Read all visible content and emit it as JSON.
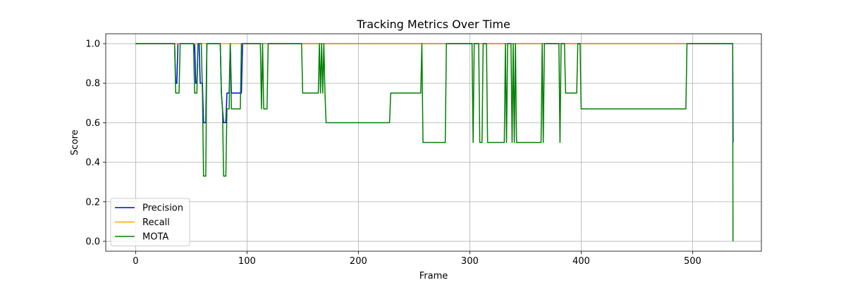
{
  "chart_data": {
    "type": "line",
    "title": "Tracking Metrics Over Time",
    "xlabel": "Frame",
    "ylabel": "Score",
    "xlim": [
      -26.8,
      561.8
    ],
    "ylim": [
      -0.05,
      1.05
    ],
    "xticks": [
      0,
      100,
      200,
      300,
      400,
      500
    ],
    "yticks": [
      0.0,
      0.2,
      0.4,
      0.6,
      0.8,
      1.0
    ],
    "grid": true,
    "legend_position": "lower-left",
    "series": [
      {
        "name": "Precision",
        "color": "#0000ff",
        "points": [
          [
            0,
            1.0
          ],
          [
            35,
            1.0
          ],
          [
            36,
            0.8
          ],
          [
            37,
            0.8
          ],
          [
            38,
            1.0
          ],
          [
            53,
            1.0
          ],
          [
            54,
            0.8
          ],
          [
            55,
            0.8
          ],
          [
            56,
            1.0
          ],
          [
            57,
            1.0
          ],
          [
            58,
            0.8
          ],
          [
            60,
            0.8
          ],
          [
            61,
            0.6
          ],
          [
            63,
            0.6
          ],
          [
            64,
            1.0
          ],
          [
            76,
            1.0
          ],
          [
            77,
            0.75
          ],
          [
            78,
            0.67
          ],
          [
            79,
            0.6
          ],
          [
            81,
            0.6
          ],
          [
            82,
            0.75
          ],
          [
            84,
            0.75
          ],
          [
            85,
            1.0
          ],
          [
            86,
            0.75
          ],
          [
            95,
            0.75
          ],
          [
            96,
            1.0
          ],
          [
            536,
            1.0
          ],
          [
            536.4,
            0.5
          ]
        ]
      },
      {
        "name": "Recall",
        "color": "#ffa500",
        "points": [
          [
            0,
            1.0
          ],
          [
            537,
            1.0
          ]
        ]
      },
      {
        "name": "MOTA",
        "color": "#008000",
        "points": [
          [
            0,
            1.0
          ],
          [
            35,
            1.0
          ],
          [
            36,
            0.75
          ],
          [
            37,
            0.75
          ],
          [
            39,
            0.75
          ],
          [
            40,
            1.0
          ],
          [
            52,
            1.0
          ],
          [
            53,
            0.75
          ],
          [
            55,
            0.75
          ],
          [
            56,
            1.0
          ],
          [
            59,
            1.0
          ],
          [
            60,
            0.75
          ],
          [
            61,
            0.33
          ],
          [
            63,
            0.33
          ],
          [
            64,
            1.0
          ],
          [
            76,
            1.0
          ],
          [
            77,
            0.75
          ],
          [
            78,
            0.67
          ],
          [
            79,
            0.33
          ],
          [
            81,
            0.33
          ],
          [
            82,
            0.67
          ],
          [
            84,
            0.67
          ],
          [
            85,
            1.0
          ],
          [
            86,
            0.67
          ],
          [
            94,
            0.67
          ],
          [
            95,
            1.0
          ],
          [
            112,
            1.0
          ],
          [
            113,
            0.67
          ],
          [
            114,
            1.0
          ],
          [
            115,
            0.67
          ],
          [
            118,
            0.67
          ],
          [
            119,
            1.0
          ],
          [
            149,
            1.0
          ],
          [
            150,
            0.75
          ],
          [
            164,
            0.75
          ],
          [
            165,
            1.0
          ],
          [
            166,
            0.75
          ],
          [
            167,
            1.0
          ],
          [
            168,
            0.75
          ],
          [
            169,
            1.0
          ],
          [
            170,
            0.75
          ],
          [
            171,
            0.6
          ],
          [
            228,
            0.6
          ],
          [
            229,
            0.75
          ],
          [
            256,
            0.75
          ],
          [
            257,
            1.0
          ],
          [
            258,
            0.5
          ],
          [
            278,
            0.5
          ],
          [
            279,
            1.0
          ],
          [
            302,
            1.0
          ],
          [
            303,
            0.5
          ],
          [
            304,
            1.0
          ],
          [
            308,
            1.0
          ],
          [
            309,
            0.5
          ],
          [
            311,
            0.5
          ],
          [
            312,
            1.0
          ],
          [
            315,
            1.0
          ],
          [
            316,
            0.5
          ],
          [
            331,
            0.5
          ],
          [
            332,
            1.0
          ],
          [
            333,
            0.5
          ],
          [
            334,
            1.0
          ],
          [
            337,
            1.0
          ],
          [
            338,
            0.5
          ],
          [
            339,
            1.0
          ],
          [
            340,
            0.5
          ],
          [
            341,
            1.0
          ],
          [
            342,
            0.5
          ],
          [
            364,
            0.5
          ],
          [
            365,
            1.0
          ],
          [
            366,
            0.5
          ],
          [
            367,
            1.0
          ],
          [
            380,
            1.0
          ],
          [
            381,
            0.5
          ],
          [
            382,
            1.0
          ],
          [
            385,
            1.0
          ],
          [
            386,
            0.75
          ],
          [
            396,
            0.75
          ],
          [
            397,
            1.0
          ],
          [
            399,
            1.0
          ],
          [
            400,
            0.67
          ],
          [
            494,
            0.67
          ],
          [
            495,
            1.0
          ],
          [
            536,
            1.0
          ],
          [
            536.3,
            0.0
          ]
        ]
      }
    ]
  }
}
